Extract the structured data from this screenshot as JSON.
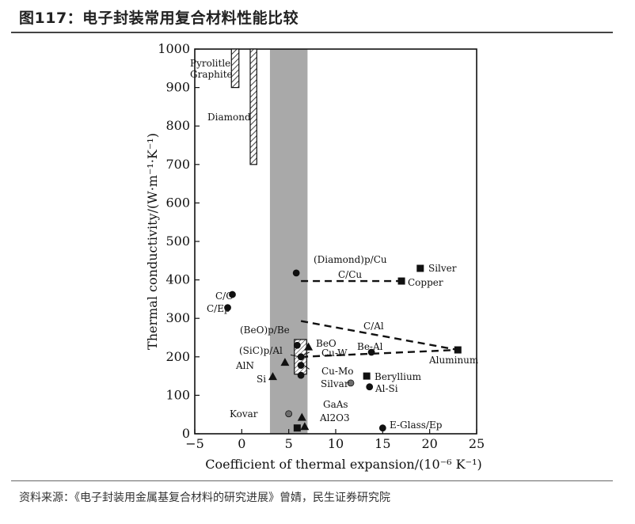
{
  "header": {
    "title": "图117：电子封装常用复合材料性能比较"
  },
  "footer": {
    "source": "资料来源：《电子封装用金属基复合材料的研究进展》曾婧，民生证券研究院"
  },
  "chart_data": {
    "type": "scatter",
    "xlabel": "Coefficient of thermal expansion/(10⁻⁶ K⁻¹)",
    "ylabel": "Thermal conductivity/(W·m⁻¹·K⁻¹)",
    "xlim": [
      -5,
      25
    ],
    "ylim": [
      0,
      1000
    ],
    "xticks": [
      -5,
      0,
      5,
      10,
      15,
      20,
      25
    ],
    "yticks": [
      0,
      100,
      200,
      300,
      400,
      500,
      600,
      700,
      800,
      900,
      1000
    ],
    "grid": false,
    "shaded_band": {
      "x": [
        3,
        7
      ]
    },
    "bars": [
      {
        "label": "Pyrolitle Graphite",
        "x": [
          -1.1,
          -0.3
        ],
        "y": [
          900,
          1000
        ]
      },
      {
        "label": "Diamond",
        "x": [
          0.9,
          1.6
        ],
        "y": [
          700,
          1000
        ]
      }
    ],
    "boxes": [
      {
        "x": [
          5.6,
          6.9
        ],
        "y": [
          155,
          245
        ]
      }
    ],
    "points": [
      {
        "label": "(Diamond)p/Cu",
        "x": 5.8,
        "y": 418,
        "marker": "circle"
      },
      {
        "label": "Silver",
        "x": 19,
        "y": 430,
        "marker": "square"
      },
      {
        "label": "Copper",
        "x": 17,
        "y": 397,
        "marker": "square"
      },
      {
        "label": "C/C",
        "x": -1,
        "y": 362,
        "marker": "circle"
      },
      {
        "label": "C/Ep",
        "x": -1.5,
        "y": 328,
        "marker": "circle"
      },
      {
        "label": "(BeO)p/Be",
        "x": 5.9,
        "y": 230,
        "marker": "circle"
      },
      {
        "label": "BeO",
        "x": 7.1,
        "y": 225,
        "marker": "triangle"
      },
      {
        "label": "Be-Al",
        "x": 13.8,
        "y": 212,
        "marker": "circle"
      },
      {
        "label": "Aluminum",
        "x": 23,
        "y": 218,
        "marker": "square"
      },
      {
        "label": "AlN",
        "x": 4.6,
        "y": 185,
        "marker": "triangle"
      },
      {
        "label": "Si",
        "x": 3.3,
        "y": 148,
        "marker": "triangle"
      },
      {
        "label": "Silvar",
        "x": 11.6,
        "y": 132,
        "marker": "circle_gray"
      },
      {
        "label": "Beryllium",
        "x": 13.3,
        "y": 150,
        "marker": "square"
      },
      {
        "label": "Al-Si",
        "x": 13.6,
        "y": 122,
        "marker": "circle"
      },
      {
        "label": "Kovar",
        "x": 5,
        "y": 52,
        "marker": "circle_gray"
      },
      {
        "label": "GaAs",
        "x": 6.4,
        "y": 42,
        "marker": "triangle"
      },
      {
        "label": "Al2O3",
        "x": 6.7,
        "y": 18,
        "marker": "triangle"
      },
      {
        "label": "",
        "x": 5.9,
        "y": 15,
        "marker": "square"
      },
      {
        "label": "E-Glass/Ep",
        "x": 15,
        "y": 15,
        "marker": "circle"
      },
      {
        "label": "",
        "x": 6.3,
        "y": 200,
        "marker": "circle"
      },
      {
        "label": "",
        "x": 6.3,
        "y": 178,
        "marker": "circle"
      },
      {
        "label": "",
        "x": 6.3,
        "y": 152,
        "marker": "circle"
      }
    ],
    "lines": [
      {
        "label": "C/Cu",
        "from": [
          6.3,
          397
        ],
        "to": [
          17,
          397
        ]
      },
      {
        "label": "C/Al",
        "from": [
          6.3,
          293
        ],
        "to": [
          23,
          218
        ]
      },
      {
        "label": "",
        "from": [
          6.3,
          200
        ],
        "to": [
          23,
          218
        ]
      }
    ],
    "annotations": [
      {
        "text": "(Diamond)p/Cu"
      },
      {
        "text": "C/Cu"
      },
      {
        "text": "Silver"
      },
      {
        "text": "Copper"
      },
      {
        "text": "C/C"
      },
      {
        "text": "C/Ep"
      },
      {
        "text": "C/Al"
      },
      {
        "text": "(BeO)p/Be"
      },
      {
        "text": "BeO"
      },
      {
        "text": "Be-Al"
      },
      {
        "text": "(SiC)p/Al"
      },
      {
        "text": "Cu-W"
      },
      {
        "text": "Aluminum"
      },
      {
        "text": "AlN"
      },
      {
        "text": "Cu-Mo"
      },
      {
        "text": "Si"
      },
      {
        "text": "Beryllium"
      },
      {
        "text": "Silvar"
      },
      {
        "text": "Al-Si"
      },
      {
        "text": "GaAs"
      },
      {
        "text": "Kovar"
      },
      {
        "text": "Al2O3"
      },
      {
        "text": "E-Glass/Ep"
      },
      {
        "text": "Pyrolitle"
      },
      {
        "text": "Graphite"
      },
      {
        "text": "Diamond"
      }
    ]
  }
}
